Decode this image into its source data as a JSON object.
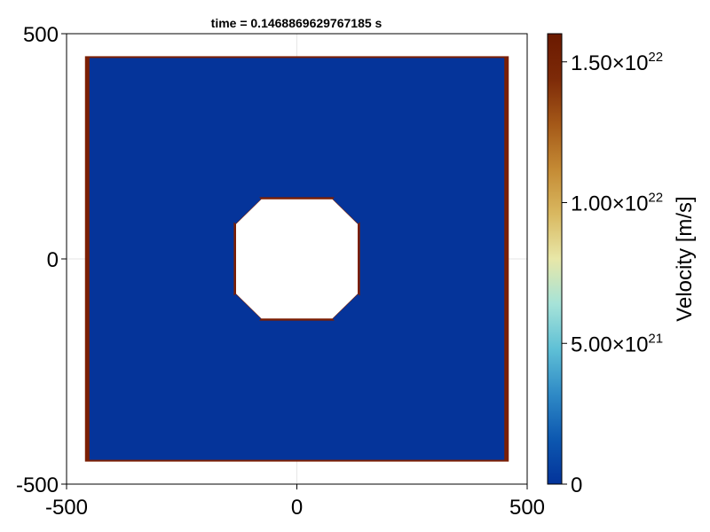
{
  "chart_data": {
    "type": "heatmap",
    "title": "time = 0.1468869629767185 s",
    "xlabel": "",
    "ylabel": "",
    "xlim": [
      -500,
      500
    ],
    "ylim": [
      -500,
      500
    ],
    "x_ticks": [
      -500,
      0,
      500
    ],
    "y_ticks": [
      -500,
      0,
      500
    ],
    "x_tick_labels": [
      "-500",
      "0",
      "500"
    ],
    "y_tick_labels": [
      "-500",
      "0",
      "500"
    ],
    "grid": true,
    "domain": {
      "x": [
        -460,
        460
      ],
      "y": [
        -450,
        450
      ]
    },
    "hole": {
      "shape": "rounded-octagon",
      "center": [
        0,
        0
      ],
      "half_width": 135,
      "corner_cut": 55
    },
    "field": {
      "interior_velocity": 0,
      "boundary_velocity": 1.6e+22,
      "boundary_locations": [
        "left edge",
        "right edge",
        "top edge",
        "bottom edge",
        "hole top",
        "hole bottom",
        "hole left",
        "hole right"
      ]
    },
    "colorbar": {
      "label": "Velocity [m/s]",
      "range": [
        0,
        1.6e+22
      ],
      "ticks": [
        0,
        5e+21,
        1e+22,
        1.5e+22
      ],
      "tick_labels": [
        {
          "mantissa": "0",
          "exp": ""
        },
        {
          "mantissa": "5.00×10",
          "exp": "21"
        },
        {
          "mantissa": "1.00×10",
          "exp": "22"
        },
        {
          "mantissa": "1.50×10",
          "exp": "22"
        }
      ],
      "colormap": [
        "#03339a",
        "#0d58b0",
        "#2f8ac6",
        "#5fc0d6",
        "#a6e3d8",
        "#e8e7a8",
        "#d9b860",
        "#c48a34",
        "#a45818",
        "#7d2a08",
        "#6a1900"
      ]
    },
    "colors": {
      "interior": "#05349a",
      "boundary": "#7b1f04",
      "hole": "#ffffff",
      "grid": "#e6e6e6",
      "axis": "#000000"
    }
  }
}
